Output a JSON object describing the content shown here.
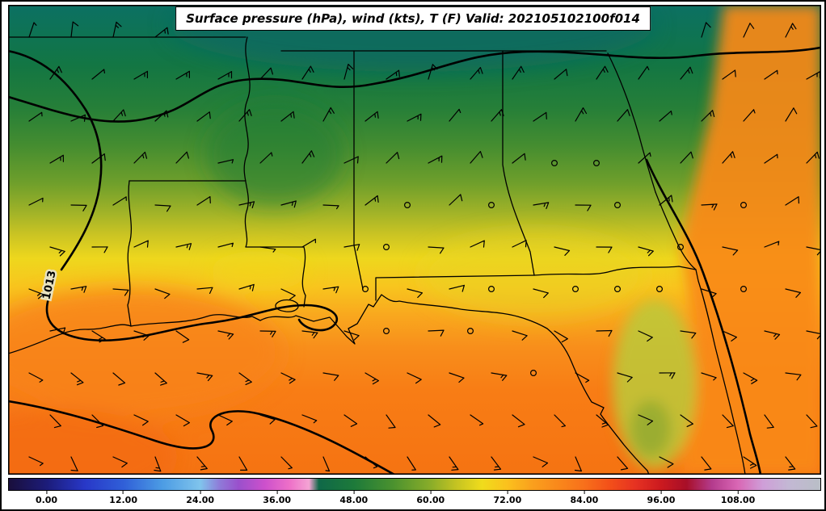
{
  "figure": {
    "title": "Surface pressure (hPa), wind (kts), T (F) Valid: 202105102100f014"
  },
  "map": {
    "pressure_label": "1013",
    "contour_color": "#000000",
    "border_color": "#000000",
    "field_stops": [
      [
        0,
        "#0c7063"
      ],
      [
        6,
        "#0e7354"
      ],
      [
        13,
        "#137643"
      ],
      [
        22,
        "#267f38"
      ],
      [
        30,
        "#458d30"
      ],
      [
        38,
        "#6f9f2b"
      ],
      [
        44,
        "#9fb228"
      ],
      [
        49,
        "#cbc423"
      ],
      [
        54,
        "#eed71d"
      ],
      [
        60,
        "#f8c51e"
      ],
      [
        66,
        "#f9a81e"
      ],
      [
        73,
        "#f88e1b"
      ],
      [
        82,
        "#f87d15"
      ],
      [
        100,
        "#f57312"
      ]
    ]
  },
  "wind": {
    "spacing": 52,
    "shaft_length": 19,
    "barb_length": 8,
    "color": "#000000"
  },
  "colorbar": {
    "min": -6,
    "max": 121,
    "ticks": [
      {
        "value": 0,
        "label": "0.00"
      },
      {
        "value": 12,
        "label": "12.00"
      },
      {
        "value": 24,
        "label": "24.00"
      },
      {
        "value": 36,
        "label": "36.00"
      },
      {
        "value": 48,
        "label": "48.00"
      },
      {
        "value": 60,
        "label": "60.00"
      },
      {
        "value": 72,
        "label": "72.00"
      },
      {
        "value": 84,
        "label": "84.00"
      },
      {
        "value": 96,
        "label": "96.00"
      },
      {
        "value": 108,
        "label": "108.00"
      }
    ],
    "stops": [
      [
        0,
        "#1a0f3c"
      ],
      [
        4.7,
        "#1c1c7a"
      ],
      [
        9.4,
        "#2838c8"
      ],
      [
        14.2,
        "#3060d8"
      ],
      [
        18.9,
        "#4c9ce4"
      ],
      [
        23.6,
        "#80c4ec"
      ],
      [
        26.0,
        "#8f7ad8"
      ],
      [
        28.3,
        "#9a50cc"
      ],
      [
        31.5,
        "#cc50cc"
      ],
      [
        34.6,
        "#ee70c8"
      ],
      [
        37.0,
        "#f4a4d4"
      ],
      [
        38.2,
        "#0f6848"
      ],
      [
        42.5,
        "#1d7a3a"
      ],
      [
        47.2,
        "#49912f"
      ],
      [
        52.0,
        "#8aad29"
      ],
      [
        55.1,
        "#c4c322"
      ],
      [
        58.3,
        "#f0dc1c"
      ],
      [
        61.4,
        "#fbc11d"
      ],
      [
        64.6,
        "#fa9f1d"
      ],
      [
        67.7,
        "#f9881b"
      ],
      [
        70.9,
        "#f8701b"
      ],
      [
        74.0,
        "#f35019"
      ],
      [
        77.2,
        "#e63222"
      ],
      [
        80.3,
        "#cc1a1f"
      ],
      [
        83.5,
        "#a80f28"
      ],
      [
        86.6,
        "#b33b8c"
      ],
      [
        89.8,
        "#d966b4"
      ],
      [
        92.9,
        "#cf9ed8"
      ],
      [
        96.1,
        "#c3b8d4"
      ],
      [
        100,
        "#b9bec6"
      ]
    ]
  },
  "chart_data": {
    "type": "heatmap",
    "title": "Surface pressure (hPa), wind (kts), T (F) Valid: 202105102100f014",
    "field": "2m temperature (F) shaded, sea-level pressure contours (hPa), wind barbs (kts)",
    "colorbar_tick_values": [
      0,
      12,
      24,
      36,
      48,
      60,
      72,
      84,
      96,
      108
    ],
    "pressure_contour_labels": [
      "1013"
    ],
    "temperature_range_shown_F": [
      45,
      85
    ],
    "legend_position": "bottom"
  }
}
